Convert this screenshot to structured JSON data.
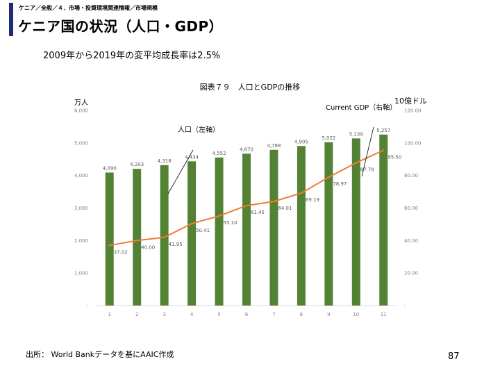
{
  "slide": {
    "breadcrumb": "ケニア／全般／４．市場・投資環境関連情報／市場規模",
    "title": "ケニア国の状況（人口・GDP）",
    "growth_note": "2009年から2019年の変平均成長率は2.5%",
    "source_note": "出所： World Bankデータを基にAAIC作成",
    "page_number": "87",
    "accent_color": "#1f2a78"
  },
  "chart_data": {
    "type": "bar",
    "title": "図表７９　人口とGDPの推移",
    "categories": [
      "1",
      "2",
      "3",
      "4",
      "5",
      "6",
      "7",
      "8",
      "9",
      "10",
      "11"
    ],
    "series": [
      {
        "name": "人口（左軸）",
        "type": "bar",
        "axis": "left",
        "color": "#548235",
        "values": [
          4090,
          4203,
          4318,
          4434,
          4552,
          4670,
          4788,
          4905,
          5022,
          5139,
          5257
        ],
        "labels": [
          "4,090",
          "4,203",
          "4,318",
          "4,434",
          "4,552",
          "4,670",
          "4,788",
          "4,905",
          "5,022",
          "5,139",
          "5,257"
        ]
      },
      {
        "name": "Current GDP（右軸）",
        "type": "line",
        "axis": "right",
        "color": "#ed7d31",
        "values": [
          37.02,
          40.0,
          41.95,
          50.41,
          55.1,
          61.45,
          64.01,
          69.19,
          78.97,
          87.78,
          95.5
        ],
        "labels": [
          "37.02",
          "40.00",
          "41.95",
          "50.41",
          "55.10",
          "61.45",
          "64.01",
          "69.19",
          "78.97",
          "87.78",
          "95.50"
        ]
      }
    ],
    "y_left": {
      "unit_label": "万人",
      "lim": [
        0,
        6000
      ],
      "ticks": [
        "-",
        "1,000",
        "2,000",
        "3,000",
        "4,000",
        "5,000",
        "6,000"
      ]
    },
    "y_right": {
      "unit_label": "10億ドル",
      "lim": [
        0,
        120
      ],
      "ticks": [
        "-",
        "20.00",
        "40.00",
        "60.00",
        "80.00",
        "100.00",
        "120.00"
      ]
    },
    "grid": false,
    "legend": "none"
  }
}
